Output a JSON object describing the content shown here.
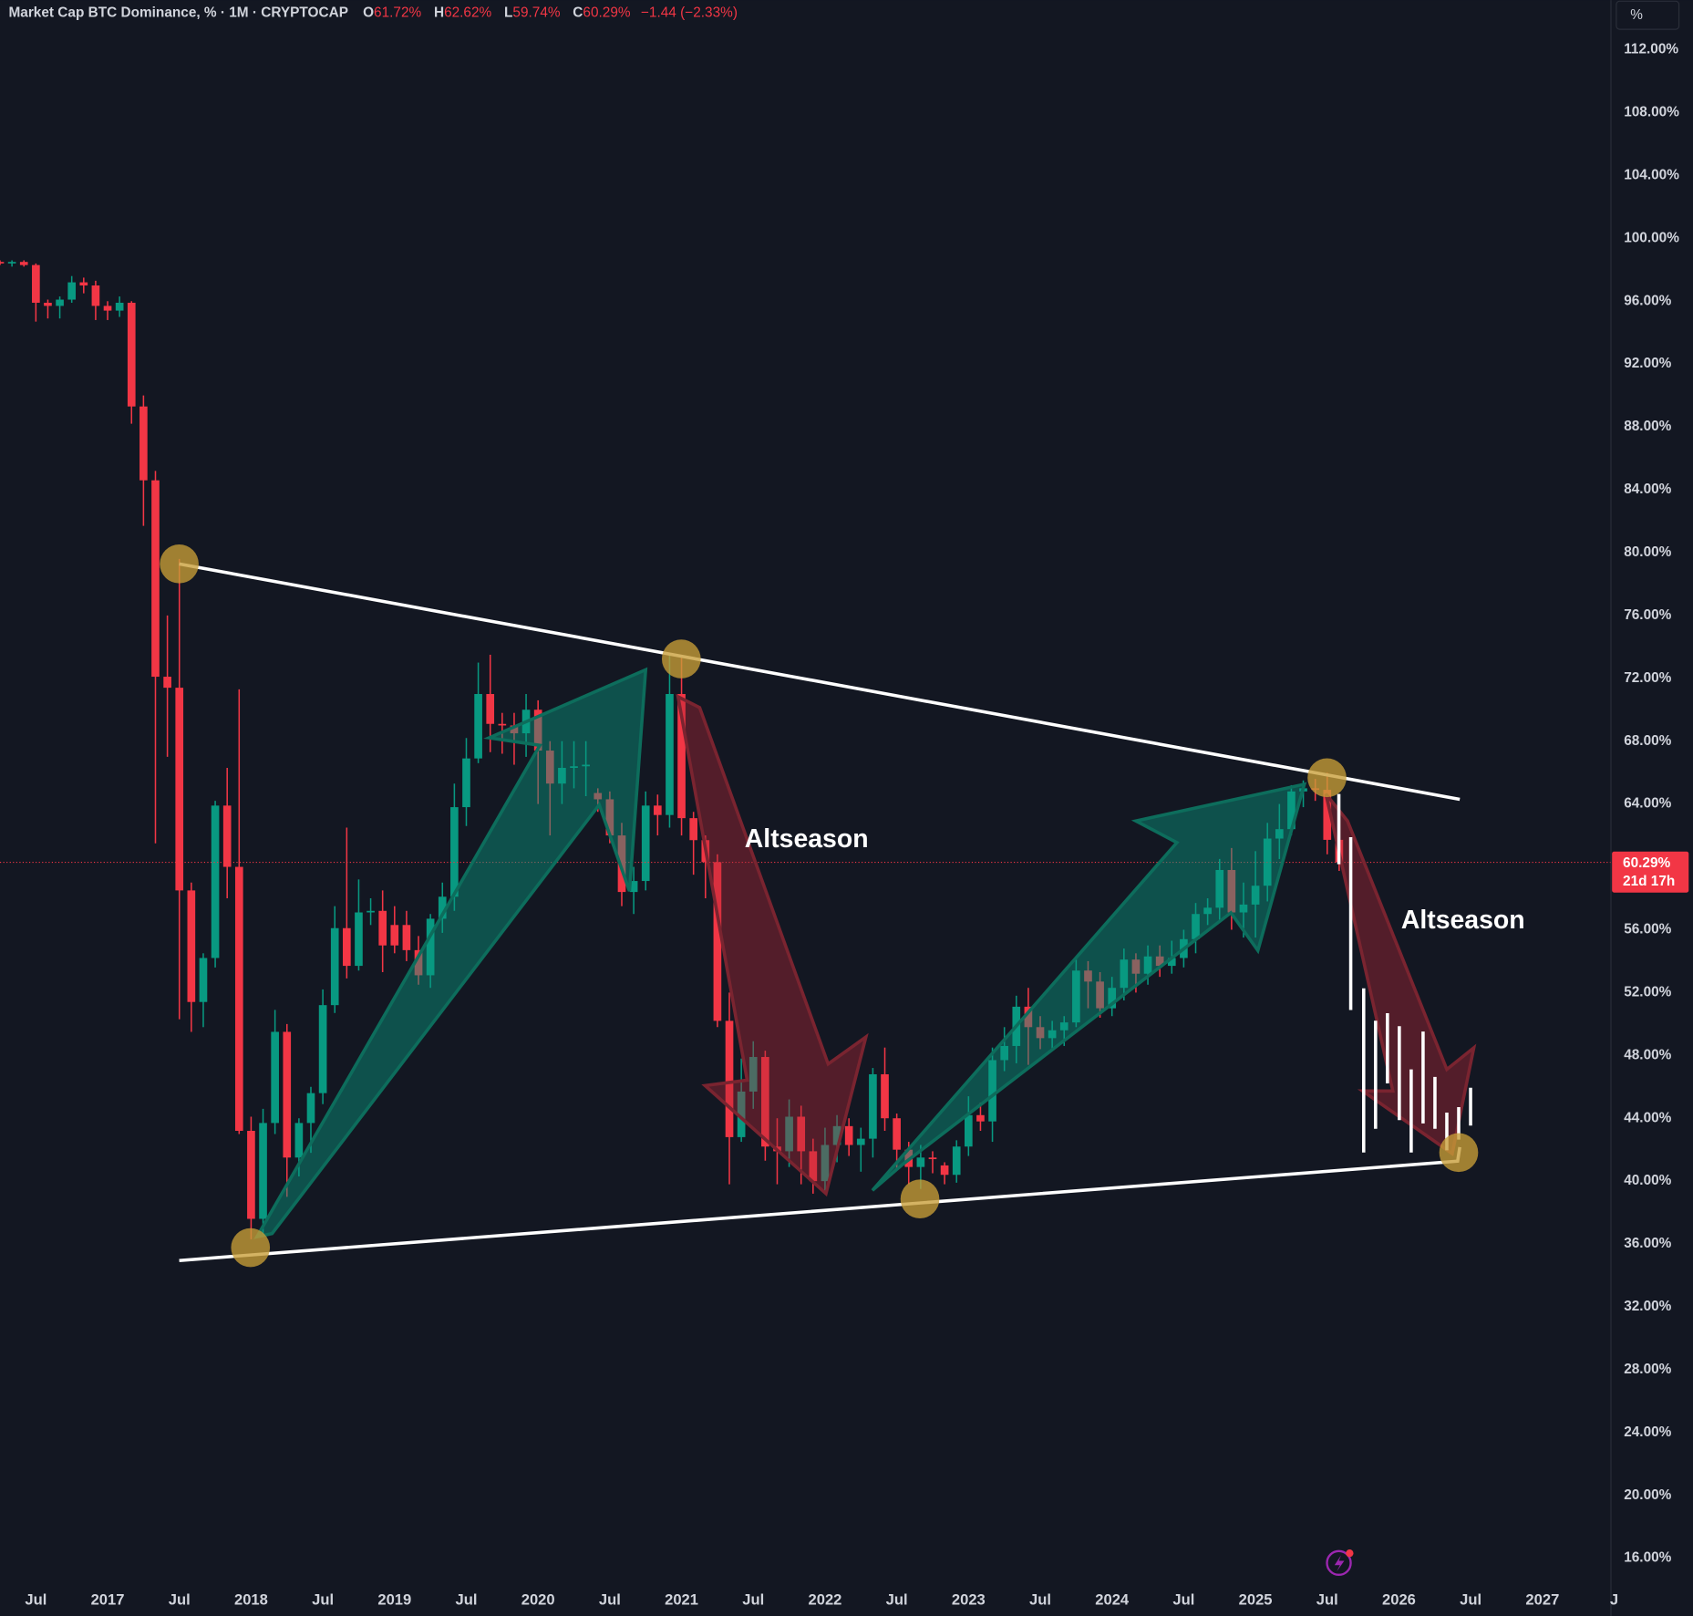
{
  "chart_data": {
    "type": "candlestick",
    "title": "Market Cap BTC Dominance, % · 1M · CRYPTOCAP",
    "ohlc_legend": [
      {
        "key": "O",
        "text": "61.72%"
      },
      {
        "key": "H",
        "text": "62.62%"
      },
      {
        "key": "L",
        "text": "59.74%"
      },
      {
        "key": "C",
        "text": "60.29%"
      }
    ],
    "change": "−1.44 (−2.33%)",
    "scale_button": "%",
    "annotations": [
      "Altseason",
      "Altseason"
    ],
    "last_price": {
      "value": 60.29,
      "label": "60.29%"
    },
    "countdown": "21d 17h",
    "up_color": "#089981",
    "down_color": "#f23645",
    "grid": false,
    "xlim": [
      "2016-04",
      "2027-07"
    ],
    "xticks": [
      {
        "value": "2016-07",
        "label": "Jul"
      },
      {
        "value": "2017-01",
        "label": "2017"
      },
      {
        "value": "2017-07",
        "label": "Jul"
      },
      {
        "value": "2018-01",
        "label": "2018"
      },
      {
        "value": "2018-07",
        "label": "Jul"
      },
      {
        "value": "2019-01",
        "label": "2019"
      },
      {
        "value": "2019-07",
        "label": "Jul"
      },
      {
        "value": "2020-01",
        "label": "2020"
      },
      {
        "value": "2020-07",
        "label": "Jul"
      },
      {
        "value": "2021-01",
        "label": "2021"
      },
      {
        "value": "2021-07",
        "label": "Jul"
      },
      {
        "value": "2022-01",
        "label": "2022"
      },
      {
        "value": "2022-07",
        "label": "Jul"
      },
      {
        "value": "2023-01",
        "label": "2023"
      },
      {
        "value": "2023-07",
        "label": "Jul"
      },
      {
        "value": "2024-01",
        "label": "2024"
      },
      {
        "value": "2024-07",
        "label": "Jul"
      },
      {
        "value": "2025-01",
        "label": "2025"
      },
      {
        "value": "2025-07",
        "label": "Jul"
      },
      {
        "value": "2026-01",
        "label": "2026"
      },
      {
        "value": "2026-07",
        "label": "Jul"
      },
      {
        "value": "2027-01",
        "label": "2027"
      },
      {
        "value": "2027-07",
        "label": "J"
      }
    ],
    "ylim": [
      14.6,
      115.16
    ],
    "yticks": [
      {
        "value": 16,
        "label": "16.00%"
      },
      {
        "value": 20,
        "label": "20.00%"
      },
      {
        "value": 24,
        "label": "24.00%"
      },
      {
        "value": 28,
        "label": "28.00%"
      },
      {
        "value": 32,
        "label": "32.00%"
      },
      {
        "value": 36,
        "label": "36.00%"
      },
      {
        "value": 40,
        "label": "40.00%"
      },
      {
        "value": 44,
        "label": "44.00%"
      },
      {
        "value": 48,
        "label": "48.00%"
      },
      {
        "value": 52,
        "label": "52.00%"
      },
      {
        "value": 56,
        "label": "56.00%"
      },
      {
        "value": 60,
        "label": "60.00%"
      },
      {
        "value": 64,
        "label": "64.00%"
      },
      {
        "value": 68,
        "label": "68.00%"
      },
      {
        "value": 72,
        "label": "72.00%"
      },
      {
        "value": 76,
        "label": "76.00%"
      },
      {
        "value": 80,
        "label": "80.00%"
      },
      {
        "value": 84,
        "label": "84.00%"
      },
      {
        "value": 88,
        "label": "88.00%"
      },
      {
        "value": 92,
        "label": "92.00%"
      },
      {
        "value": 96,
        "label": "96.00%"
      },
      {
        "value": 100,
        "label": "100.00%"
      },
      {
        "value": 104,
        "label": "104.00%"
      },
      {
        "value": 108,
        "label": "108.00%"
      },
      {
        "value": 112,
        "label": "112.00%"
      }
    ],
    "x": [
      "2016-04",
      "2016-05",
      "2016-06",
      "2016-07",
      "2016-08",
      "2016-09",
      "2016-10",
      "2016-11",
      "2016-12",
      "2017-01",
      "2017-02",
      "2017-03",
      "2017-04",
      "2017-05",
      "2017-06",
      "2017-07",
      "2017-08",
      "2017-09",
      "2017-10",
      "2017-11",
      "2017-12",
      "2018-01",
      "2018-02",
      "2018-03",
      "2018-04",
      "2018-05",
      "2018-06",
      "2018-07",
      "2018-08",
      "2018-09",
      "2018-10",
      "2018-11",
      "2018-12",
      "2019-01",
      "2019-02",
      "2019-03",
      "2019-04",
      "2019-05",
      "2019-06",
      "2019-07",
      "2019-08",
      "2019-09",
      "2019-10",
      "2019-11",
      "2019-12",
      "2020-01",
      "2020-02",
      "2020-03",
      "2020-04",
      "2020-05",
      "2020-06",
      "2020-07",
      "2020-08",
      "2020-09",
      "2020-10",
      "2020-11",
      "2020-12",
      "2021-01",
      "2021-02",
      "2021-03",
      "2021-04",
      "2021-05",
      "2021-06",
      "2021-07",
      "2021-08",
      "2021-09",
      "2021-10",
      "2021-11",
      "2021-12",
      "2022-01",
      "2022-02",
      "2022-03",
      "2022-04",
      "2022-05",
      "2022-06",
      "2022-07",
      "2022-08",
      "2022-09",
      "2022-10",
      "2022-11",
      "2022-12",
      "2023-01",
      "2023-02",
      "2023-03",
      "2023-04",
      "2023-05",
      "2023-06",
      "2023-07",
      "2023-08",
      "2023-09",
      "2023-10",
      "2023-11",
      "2023-12",
      "2024-01",
      "2024-02",
      "2024-03",
      "2024-04",
      "2024-05",
      "2024-06",
      "2024-07",
      "2024-08",
      "2024-09",
      "2024-10",
      "2024-11",
      "2024-12",
      "2025-01",
      "2025-02",
      "2025-03",
      "2025-04",
      "2025-05",
      "2025-06",
      "2025-07",
      "2025-08"
    ],
    "open": [
      98.5,
      98.4,
      98.5,
      98.3,
      95.9,
      95.7,
      96.1,
      97.2,
      97.0,
      95.7,
      95.4,
      95.9,
      89.3,
      84.6,
      72.1,
      71.4,
      58.5,
      51.4,
      54.2,
      63.9,
      60.0,
      43.2,
      37.6,
      43.7,
      49.5,
      41.5,
      43.7,
      45.6,
      51.2,
      56.1,
      53.7,
      57.1,
      57.2,
      56.3,
      56.3,
      54.7,
      53.1,
      56.7,
      58.1,
      63.8,
      66.9,
      71.0,
      69.1,
      69.0,
      68.5,
      70.0,
      67.4,
      65.3,
      66.3,
      66.4,
      64.7,
      64.3,
      62.0,
      58.4,
      59.1,
      63.9,
      63.3,
      71.0,
      63.1,
      61.7,
      60.3,
      50.2,
      42.8,
      45.7,
      47.9,
      42.2,
      41.9,
      44.1,
      41.9,
      40.0,
      42.3,
      43.5,
      42.3,
      42.7,
      46.8,
      44.0,
      42.0,
      40.9,
      41.5,
      41.0,
      40.4,
      42.2,
      44.2,
      43.8,
      47.7,
      48.6,
      51.1,
      49.8,
      49.1,
      49.6,
      50.1,
      53.4,
      52.7,
      51.0,
      52.3,
      54.1,
      53.2,
      54.3,
      53.7,
      54.2,
      55.4,
      57.0,
      57.4,
      59.8,
      57.1,
      57.6,
      58.8,
      61.8,
      62.4,
      64.8,
      65.0,
      64.9,
      61.72
    ],
    "high": [
      98.6,
      98.6,
      98.6,
      98.4,
      96.1,
      96.3,
      97.6,
      97.5,
      97.3,
      96.0,
      96.3,
      96.0,
      90.0,
      85.2,
      76.0,
      79.6,
      59.0,
      54.5,
      64.2,
      66.3,
      71.3,
      44.1,
      44.6,
      50.9,
      50.0,
      44.0,
      46.0,
      52.2,
      57.5,
      62.5,
      59.2,
      58.0,
      58.5,
      57.5,
      57.2,
      55.6,
      57.0,
      59.0,
      65.3,
      68.2,
      73.0,
      73.5,
      69.8,
      69.8,
      71.0,
      70.6,
      68.0,
      68.0,
      68.0,
      68.0,
      65.0,
      64.8,
      62.8,
      60.0,
      64.8,
      64.6,
      73.5,
      73.3,
      63.5,
      62.0,
      60.8,
      52.0,
      47.8,
      48.9,
      48.3,
      44.0,
      45.2,
      44.8,
      42.7,
      43.4,
      44.2,
      44.0,
      43.4,
      47.2,
      48.5,
      44.3,
      42.5,
      42.3,
      41.9,
      41.2,
      42.6,
      45.4,
      45.0,
      48.5,
      49.8,
      51.8,
      52.3,
      50.5,
      50.2,
      50.5,
      54.2,
      54.0,
      53.3,
      53.0,
      54.8,
      54.5,
      55.0,
      55.0,
      55.3,
      56.0,
      57.7,
      58.0,
      60.5,
      61.2,
      59.0,
      61.0,
      62.8,
      64.0,
      65.2,
      65.5,
      65.6,
      66.0,
      62.62
    ],
    "low": [
      98.3,
      98.2,
      98.2,
      94.7,
      94.9,
      94.9,
      95.9,
      96.5,
      94.8,
      94.8,
      95.0,
      88.2,
      81.7,
      61.5,
      67.0,
      50.3,
      49.5,
      49.8,
      53.6,
      58.0,
      43.0,
      36.3,
      36.5,
      43.0,
      39.0,
      40.3,
      41.8,
      44.9,
      50.7,
      52.9,
      53.4,
      56.3,
      53.3,
      54.5,
      54.0,
      52.5,
      52.3,
      55.8,
      57.2,
      62.6,
      66.6,
      67.3,
      67.2,
      66.5,
      67.0,
      64.0,
      62.0,
      64.0,
      65.0,
      64.5,
      63.5,
      61.5,
      57.5,
      57.0,
      58.5,
      62.0,
      62.5,
      62.0,
      59.5,
      58.0,
      49.8,
      39.8,
      42.5,
      44.6,
      41.3,
      39.8,
      40.9,
      39.8,
      39.2,
      39.4,
      41.2,
      41.6,
      40.6,
      41.5,
      43.2,
      40.8,
      39.8,
      39.5,
      40.5,
      39.8,
      39.9,
      41.6,
      43.2,
      42.5,
      47.0,
      47.5,
      47.4,
      48.4,
      48.3,
      48.6,
      49.8,
      51.0,
      50.4,
      50.5,
      51.5,
      52.0,
      52.5,
      53.0,
      53.2,
      53.6,
      54.5,
      56.3,
      56.6,
      56.0,
      55.5,
      55.5,
      57.8,
      60.5,
      62.0,
      63.8,
      64.2,
      60.8,
      59.74
    ],
    "close": [
      98.4,
      98.5,
      98.3,
      95.9,
      95.7,
      96.1,
      97.2,
      97.0,
      95.7,
      95.4,
      95.9,
      89.3,
      84.6,
      72.1,
      71.4,
      58.5,
      51.4,
      54.2,
      63.9,
      60.0,
      43.2,
      37.6,
      43.7,
      49.5,
      41.5,
      43.7,
      45.6,
      51.2,
      56.1,
      53.7,
      57.1,
      57.2,
      55.0,
      55.0,
      54.7,
      53.1,
      56.7,
      58.1,
      63.8,
      66.9,
      71.0,
      69.1,
      69.0,
      68.5,
      70.0,
      67.4,
      65.3,
      66.3,
      66.4,
      66.5,
      64.3,
      62.0,
      58.4,
      59.1,
      63.9,
      63.3,
      71.0,
      63.1,
      61.7,
      60.3,
      50.2,
      42.8,
      45.7,
      47.9,
      42.2,
      41.9,
      44.1,
      41.9,
      40.0,
      42.3,
      43.5,
      42.3,
      42.7,
      46.8,
      44.0,
      42.0,
      40.9,
      41.5,
      41.4,
      40.4,
      42.2,
      44.2,
      43.8,
      47.7,
      48.6,
      51.1,
      49.8,
      49.1,
      49.6,
      50.1,
      53.4,
      52.7,
      51.0,
      52.3,
      54.1,
      53.2,
      54.3,
      53.7,
      54.2,
      55.4,
      57.0,
      57.4,
      59.8,
      57.1,
      57.6,
      58.8,
      61.8,
      62.4,
      64.8,
      65.0,
      64.9,
      61.72,
      60.29
    ]
  }
}
